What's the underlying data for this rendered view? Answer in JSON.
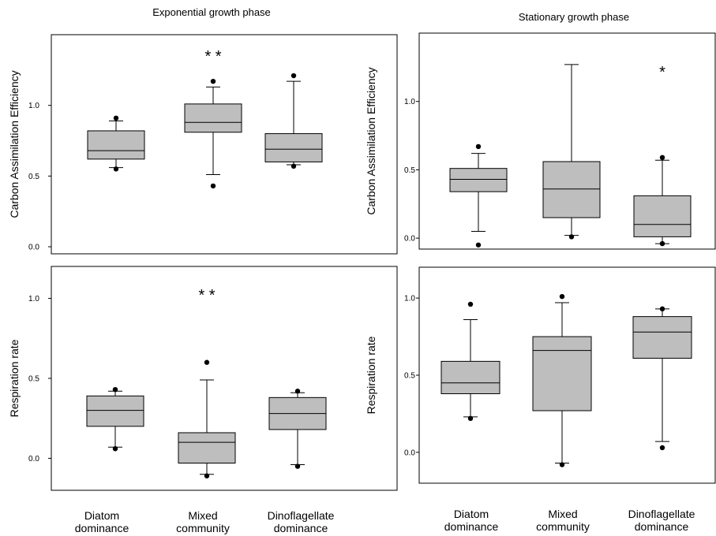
{
  "figure": {
    "col_titles": [
      "Exponential growth phase",
      "Stationary growth phase"
    ],
    "categories": [
      [
        "Diatom",
        "dominance"
      ],
      [
        "Mixed",
        "community"
      ],
      [
        "Dinoflagellate",
        "dominance"
      ]
    ]
  },
  "chart_data": [
    {
      "type": "box",
      "title": "Exponential growth phase",
      "ylabel": "Carbon Assimilation Efficiency",
      "ylim": [
        -0.05,
        1.5
      ],
      "yticks": [
        "0.0",
        "0.5",
        "1.0"
      ],
      "categories": [
        "Diatom dominance",
        "Mixed community",
        "Dinoflagellate dominance"
      ],
      "boxes": [
        {
          "whisker_low": 0.56,
          "q1": 0.62,
          "median": 0.68,
          "q3": 0.82,
          "whisker_high": 0.89,
          "outliers": [
            0.55,
            0.91
          ]
        },
        {
          "whisker_low": 0.51,
          "q1": 0.81,
          "median": 0.88,
          "q3": 1.01,
          "whisker_high": 1.13,
          "outliers": [
            0.43,
            1.17
          ]
        },
        {
          "whisker_low": 0.58,
          "q1": 0.6,
          "median": 0.69,
          "q3": 0.8,
          "whisker_high": 1.17,
          "outliers": [
            0.57,
            1.21
          ]
        }
      ],
      "significance": [
        "",
        "* *",
        ""
      ]
    },
    {
      "type": "box",
      "title": "Stationary growth phase",
      "ylabel": "Carbon Assimilation Efficiency",
      "ylim": [
        -0.08,
        1.5
      ],
      "yticks": [
        "0.0",
        "0.5",
        "1.0"
      ],
      "categories": [
        "Diatom dominance",
        "Mixed community",
        "Dinoflagellate dominance"
      ],
      "boxes": [
        {
          "whisker_low": 0.05,
          "q1": 0.34,
          "median": 0.43,
          "q3": 0.51,
          "whisker_high": 0.62,
          "outliers": [
            -0.05,
            0.67
          ]
        },
        {
          "whisker_low": 0.02,
          "q1": 0.15,
          "median": 0.36,
          "q3": 0.56,
          "whisker_high": 1.27,
          "outliers": [
            0.01
          ]
        },
        {
          "whisker_low": -0.04,
          "q1": 0.01,
          "median": 0.1,
          "q3": 0.31,
          "whisker_high": 0.57,
          "outliers": [
            -0.04,
            0.59
          ]
        }
      ],
      "significance": [
        "",
        "",
        "*"
      ]
    },
    {
      "type": "box",
      "ylabel": "Respiration rate",
      "ylim": [
        -0.2,
        1.2
      ],
      "yticks": [
        "0.0",
        "0.5",
        "1.0"
      ],
      "categories": [
        "Diatom dominance",
        "Mixed community",
        "Dinoflagellate dominance"
      ],
      "boxes": [
        {
          "whisker_low": 0.07,
          "q1": 0.2,
          "median": 0.3,
          "q3": 0.39,
          "whisker_high": 0.42,
          "outliers": [
            0.06,
            0.43
          ]
        },
        {
          "whisker_low": -0.1,
          "q1": -0.03,
          "median": 0.1,
          "q3": 0.16,
          "whisker_high": 0.49,
          "outliers": [
            -0.11,
            0.6
          ]
        },
        {
          "whisker_low": -0.04,
          "q1": 0.18,
          "median": 0.28,
          "q3": 0.38,
          "whisker_high": 0.41,
          "outliers": [
            -0.05,
            0.42
          ]
        }
      ],
      "significance": [
        "",
        "* *",
        ""
      ]
    },
    {
      "type": "box",
      "ylabel": "Respiration rate",
      "ylim": [
        -0.2,
        1.2
      ],
      "yticks": [
        "0.0",
        "0.5",
        "1.0"
      ],
      "categories": [
        "Diatom dominance",
        "Mixed community",
        "Dinoflagellate dominance"
      ],
      "boxes": [
        {
          "whisker_low": 0.23,
          "q1": 0.38,
          "median": 0.45,
          "q3": 0.59,
          "whisker_high": 0.86,
          "outliers": [
            0.22,
            0.96
          ]
        },
        {
          "whisker_low": -0.07,
          "q1": 0.27,
          "median": 0.66,
          "q3": 0.75,
          "whisker_high": 0.97,
          "outliers": [
            -0.08,
            1.01
          ]
        },
        {
          "whisker_low": 0.07,
          "q1": 0.61,
          "median": 0.78,
          "q3": 0.88,
          "whisker_high": 0.93,
          "outliers": [
            0.03,
            0.93
          ]
        }
      ],
      "significance": [
        "",
        "",
        ""
      ]
    }
  ]
}
